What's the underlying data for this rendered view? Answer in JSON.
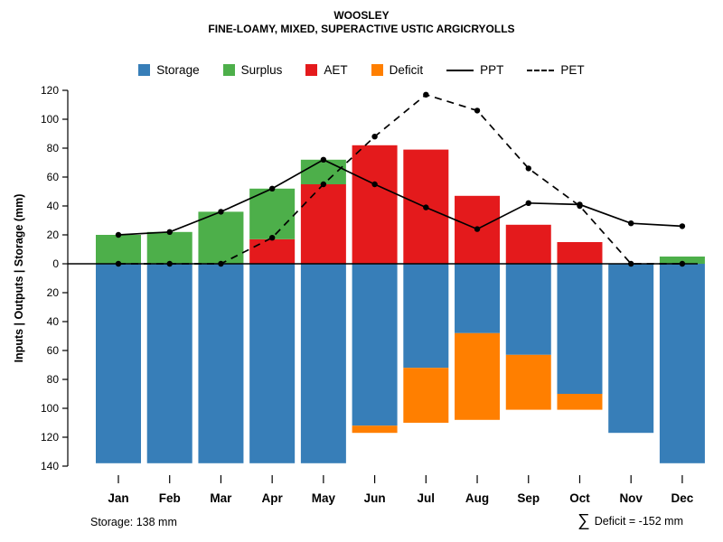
{
  "title": "WOOSLEY",
  "subtitle": "FINE-LOAMY, MIXED, SUPERACTIVE USTIC ARGICRYOLLS",
  "y_axis_label": "Inputs | Outputs | Storage   (mm)",
  "footer_left": "Storage: 138 mm",
  "footer_right_symbol": "∑",
  "footer_right_text": "Deficit = -152 mm",
  "colors": {
    "storage": "#377eb8",
    "surplus": "#4daf4a",
    "aet": "#e41a1c",
    "deficit": "#ff7f00",
    "line": "#000000"
  },
  "legend": [
    {
      "label": "Storage",
      "swatch": "#377eb8",
      "kind": "box"
    },
    {
      "label": "Surplus",
      "swatch": "#4daf4a",
      "kind": "box"
    },
    {
      "label": "AET",
      "swatch": "#e41a1c",
      "kind": "box"
    },
    {
      "label": "Deficit",
      "swatch": "#ff7f00",
      "kind": "box"
    },
    {
      "label": "PPT",
      "swatch": "#000000",
      "kind": "line-solid"
    },
    {
      "label": "PET",
      "swatch": "#000000",
      "kind": "line-dashed"
    }
  ],
  "chart_data": {
    "type": "bar",
    "title": "WOOSLEY",
    "subtitle": "FINE-LOAMY, MIXED, SUPERACTIVE USTIC ARGICRYOLLS",
    "ylabel": "Inputs | Outputs | Storage (mm)",
    "categories": [
      "Jan",
      "Feb",
      "Mar",
      "Apr",
      "May",
      "Jun",
      "Jul",
      "Aug",
      "Sep",
      "Oct",
      "Nov",
      "Dec"
    ],
    "series": [
      {
        "name": "Storage",
        "kind": "bar-below",
        "color": "#377eb8",
        "values": [
          138,
          138,
          138,
          138,
          138,
          112,
          72,
          48,
          63,
          90,
          117,
          138
        ]
      },
      {
        "name": "Deficit",
        "kind": "bar-below",
        "color": "#ff7f00",
        "values": [
          0,
          0,
          0,
          0,
          0,
          5,
          38,
          60,
          38,
          11,
          0,
          0
        ]
      },
      {
        "name": "AET",
        "kind": "bar-above",
        "color": "#e41a1c",
        "values": [
          0,
          0,
          0,
          17,
          55,
          82,
          79,
          47,
          27,
          15,
          0,
          0
        ]
      },
      {
        "name": "Surplus",
        "kind": "bar-above",
        "color": "#4daf4a",
        "values": [
          20,
          22,
          36,
          35,
          17,
          0,
          0,
          0,
          0,
          0,
          0,
          5
        ]
      },
      {
        "name": "PPT",
        "kind": "line-solid",
        "color": "#000000",
        "values": [
          20,
          22,
          36,
          52,
          72,
          55,
          39,
          24,
          42,
          41,
          28,
          26
        ]
      },
      {
        "name": "PET",
        "kind": "line-dashed",
        "color": "#000000",
        "values": [
          0,
          0,
          0,
          18,
          55,
          88,
          117,
          106,
          66,
          40,
          0,
          0
        ]
      }
    ],
    "ylim": {
      "top": 120,
      "bottom": -140
    },
    "y_tick_values": [
      120,
      100,
      80,
      60,
      40,
      20,
      0,
      -20,
      -40,
      -60,
      -80,
      -100,
      -120,
      -140
    ],
    "y_tick_labels": [
      "120",
      "100",
      "80",
      "60",
      "40",
      "20",
      "0",
      "20",
      "40",
      "60",
      "80",
      "100",
      "120",
      "140"
    ],
    "grid": false,
    "legend_position": "top",
    "annotations": {
      "storage_capacity_mm": 138,
      "deficit_sum_mm": -152
    }
  }
}
